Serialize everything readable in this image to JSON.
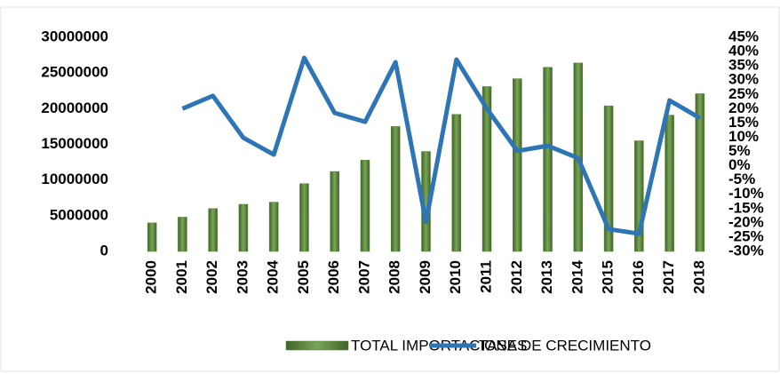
{
  "chart_data": {
    "type": "bar_line",
    "categories": [
      "2000",
      "2001",
      "2002",
      "2003",
      "2004",
      "2005",
      "2006",
      "2007",
      "2008",
      "2009",
      "2010",
      "2011",
      "2012",
      "2013",
      "2014",
      "2015",
      "2016",
      "2017",
      "2018"
    ],
    "series": [
      {
        "name": "TOTAL IMPORTACIONES",
        "type": "bar",
        "color": "#548235",
        "values": [
          4000000,
          4800000,
          6000000,
          6600000,
          6900000,
          9500000,
          11200000,
          12800000,
          17500000,
          14000000,
          19200000,
          23100000,
          24200000,
          25800000,
          26400000,
          20400000,
          15500000,
          19100000,
          22100000
        ]
      },
      {
        "name": "TASA DE CRECIMIENTO",
        "type": "line",
        "axis": "y2",
        "color": "#2e75b6",
        "values": [
          null,
          20,
          24.5,
          9.8,
          3.9,
          37.8,
          18.5,
          15.4,
          36.3,
          -19.7,
          37.2,
          20,
          5.2,
          7,
          2.7,
          -22.2,
          -23.8,
          22.9,
          16.7
        ]
      }
    ],
    "ylim": [
      0,
      30000000
    ],
    "yticks": [
      0,
      5000000,
      10000000,
      15000000,
      20000000,
      25000000,
      30000000
    ],
    "y2lim": [
      -30,
      45
    ],
    "y2ticks": [
      {
        "value": -30,
        "label": "-30%"
      },
      {
        "value": -25,
        "label": "-25%"
      },
      {
        "value": -20,
        "label": "-20%"
      },
      {
        "value": -15,
        "label": "-15%"
      },
      {
        "value": -10,
        "label": "-10%"
      },
      {
        "value": -5,
        "label": "-5%"
      },
      {
        "value": 0,
        "label": "0%"
      },
      {
        "value": 5,
        "label": "5%"
      },
      {
        "value": 10,
        "label": "10%"
      },
      {
        "value": 15,
        "label": "15%"
      },
      {
        "value": 20,
        "label": "20%"
      },
      {
        "value": 25,
        "label": "25%"
      },
      {
        "value": 30,
        "label": "30%"
      },
      {
        "value": 35,
        "label": "35%"
      },
      {
        "value": 40,
        "label": "40%"
      },
      {
        "value": 45,
        "label": "45%"
      }
    ],
    "grid": false,
    "legend": "bottom"
  }
}
